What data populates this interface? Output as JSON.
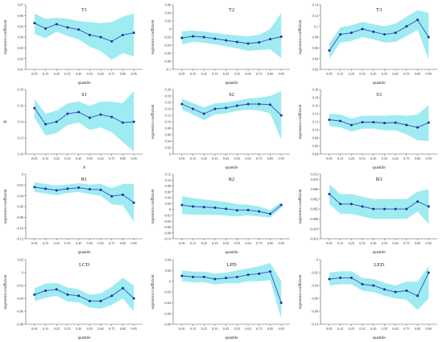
{
  "figure": {
    "x_label": "quantile",
    "band_color": "#8ee8f0",
    "line_color": "#3a4fc0",
    "marker_color": "#1e2fa0"
  },
  "chart_data": [
    {
      "type": "line",
      "title": "T1",
      "ylabel": "regression coefficient",
      "xlabel": "quantile",
      "x": [
        0.05,
        0.15,
        0.25,
        0.35,
        0.45,
        0.55,
        0.65,
        0.75,
        0.85,
        0.95
      ],
      "x_tick_labels": [
        "0.05",
        "0.15",
        "0.25",
        "0.35",
        "0.45",
        "0.55",
        "0.65",
        "0.75",
        "0.85",
        "0.95"
      ],
      "ylim": [
        0.01,
        0.07
      ],
      "y_ticks": [
        0.01,
        0.02,
        0.03,
        0.04,
        0.05,
        0.06,
        0.07
      ],
      "y_tick_labels": [
        "0.01",
        "0.02",
        "0.03",
        "0.04",
        "0.05",
        "0.06",
        "0.07"
      ],
      "series": [
        {
          "values": [
            0.053,
            0.048,
            0.052,
            0.049,
            0.047,
            0.042,
            0.04,
            0.036,
            0.042,
            0.044
          ]
        }
      ],
      "band": {
        "upper": [
          0.062,
          0.057,
          0.058,
          0.057,
          0.055,
          0.054,
          0.053,
          0.054,
          0.059,
          0.062
        ],
        "lower": [
          0.043,
          0.039,
          0.045,
          0.041,
          0.038,
          0.031,
          0.027,
          0.019,
          0.025,
          0.022
        ]
      }
    },
    {
      "type": "line",
      "title": "T2",
      "ylabel": "regression coefficient",
      "xlabel": "quantile",
      "x": [
        0.05,
        0.15,
        0.25,
        0.35,
        0.45,
        0.55,
        0.65,
        0.75,
        0.85,
        0.95
      ],
      "x_tick_labels": [
        "0.05",
        "0.15",
        "0.25",
        "0.35",
        "0.45",
        "0.55",
        "0.65",
        "0.75",
        "0.85",
        "0.95"
      ],
      "ylim": [
        -0.1,
        0.06
      ],
      "y_ticks": [
        -0.1,
        -0.08,
        -0.06,
        -0.04,
        -0.02,
        0,
        0.02,
        0.04,
        0.06
      ],
      "y_tick_labels": [
        "-0.1",
        "-0.08",
        "-0.06",
        "-0.04",
        "-0.02",
        "0",
        "0.02",
        "0.04",
        "0.06"
      ],
      "series": [
        {
          "values": [
            -0.022,
            -0.018,
            -0.02,
            -0.024,
            -0.028,
            -0.032,
            -0.036,
            -0.033,
            -0.025,
            -0.019
          ]
        }
      ],
      "band": {
        "upper": [
          -0.006,
          -0.004,
          -0.006,
          -0.01,
          -0.013,
          -0.016,
          -0.018,
          -0.014,
          0.0,
          0.04
        ],
        "lower": [
          -0.038,
          -0.032,
          -0.034,
          -0.038,
          -0.043,
          -0.048,
          -0.054,
          -0.052,
          -0.05,
          -0.072
        ]
      }
    },
    {
      "type": "line",
      "title": "T3",
      "ylabel": "regression coefficient",
      "xlabel": "quantile",
      "x": [
        0.05,
        0.15,
        0.25,
        0.35,
        0.45,
        0.55,
        0.65,
        0.75,
        0.85,
        0.95
      ],
      "x_tick_labels": [
        "0.05",
        "0.15",
        "0.25",
        "0.35",
        "0.45",
        "0.55",
        "0.65",
        "0.75",
        "0.85",
        "0.95"
      ],
      "ylim": [
        0.02,
        0.14
      ],
      "y_ticks": [
        0.02,
        0.04,
        0.06,
        0.08,
        0.1,
        0.12,
        0.14
      ],
      "y_tick_labels": [
        "0.02",
        "0.04",
        "0.06",
        "0.08",
        "0.1",
        "0.12",
        "0.14"
      ],
      "series": [
        {
          "values": [
            0.055,
            0.085,
            0.088,
            0.095,
            0.09,
            0.085,
            0.088,
            0.1,
            0.112,
            0.08
          ]
        }
      ],
      "band": {
        "upper": [
          0.068,
          0.098,
          0.102,
          0.108,
          0.104,
          0.1,
          0.105,
          0.118,
          0.13,
          0.125
        ],
        "lower": [
          0.04,
          0.07,
          0.073,
          0.08,
          0.076,
          0.07,
          0.071,
          0.082,
          0.094,
          0.038
        ]
      }
    },
    {
      "type": "line",
      "title": "S1",
      "ylabel": "B",
      "xlabel": "A",
      "x": [
        0.05,
        0.15,
        0.25,
        0.35,
        0.45,
        0.55,
        0.65,
        0.75,
        0.85,
        0.95
      ],
      "x_tick_labels": [
        "0.05",
        "0.15",
        "0.25",
        "0.35",
        "0.45",
        "0.55",
        "0.65",
        "0.75",
        "0.85",
        "0.95"
      ],
      "ylim": [
        0.1,
        0.18
      ],
      "y_ticks": [
        0.1,
        0.12,
        0.14,
        0.16,
        0.18
      ],
      "y_tick_labels": [
        "0.10",
        "0.12",
        "0.14",
        "0.16",
        "0.18"
      ],
      "series": [
        {
          "values": [
            0.157,
            0.137,
            0.14,
            0.15,
            0.152,
            0.145,
            0.149,
            0.146,
            0.139,
            0.14
          ]
        }
      ],
      "band": {
        "upper": [
          0.168,
          0.15,
          0.154,
          0.163,
          0.165,
          0.16,
          0.165,
          0.165,
          0.163,
          0.178
        ],
        "lower": [
          0.145,
          0.123,
          0.126,
          0.136,
          0.139,
          0.13,
          0.133,
          0.127,
          0.115,
          0.103
        ]
      }
    },
    {
      "type": "line",
      "title": "S2",
      "ylabel": "regression coefficient",
      "xlabel": "quantile",
      "x": [
        0.05,
        0.15,
        0.25,
        0.35,
        0.45,
        0.55,
        0.65,
        0.75,
        0.85,
        0.95
      ],
      "x_tick_labels": [
        "0.05",
        "0.15",
        "0.25",
        "0.35",
        "0.45",
        "0.55",
        "0.65",
        "0.75",
        "0.85",
        "0.95"
      ],
      "ylim": [
        0,
        0.2
      ],
      "y_ticks": [
        0,
        0.02,
        0.04,
        0.06,
        0.08,
        0.1,
        0.12,
        0.14,
        0.16,
        0.18,
        0.2
      ],
      "y_tick_labels": [
        "0",
        "0.02",
        "0.04",
        "0.06",
        "0.08",
        "0.10",
        "0.12",
        "0.14",
        "0.16",
        "0.18",
        "0.20"
      ],
      "series": [
        {
          "values": [
            0.155,
            0.14,
            0.125,
            0.14,
            0.143,
            0.15,
            0.155,
            0.155,
            0.153,
            0.12
          ]
        }
      ],
      "band": {
        "upper": [
          0.172,
          0.158,
          0.145,
          0.157,
          0.16,
          0.166,
          0.172,
          0.175,
          0.18,
          0.195
        ],
        "lower": [
          0.138,
          0.122,
          0.105,
          0.123,
          0.126,
          0.134,
          0.138,
          0.135,
          0.126,
          0.045
        ]
      }
    },
    {
      "type": "line",
      "title": "S3",
      "ylabel": "regression coefficient",
      "xlabel": "quantile",
      "x": [
        0.05,
        0.15,
        0.25,
        0.35,
        0.45,
        0.55,
        0.65,
        0.75,
        0.85,
        0.95
      ],
      "x_tick_labels": [
        "0.05",
        "0.15",
        "0.25",
        "0.35",
        "0.45",
        "0.55",
        "0.65",
        "0.75",
        "0.85",
        "0.95"
      ],
      "ylim": [
        0.04,
        0.2
      ],
      "y_ticks": [
        0.04,
        0.06,
        0.08,
        0.1,
        0.12,
        0.14,
        0.16,
        0.18,
        0.2
      ],
      "y_tick_labels": [
        "0.04",
        "0.06",
        "0.08",
        "0.10",
        "0.12",
        "0.14",
        "0.16",
        "0.18",
        "0.20"
      ],
      "series": [
        {
          "values": [
            0.125,
            0.122,
            0.112,
            0.119,
            0.119,
            0.117,
            0.118,
            0.112,
            0.106,
            0.118
          ]
        }
      ],
      "band": {
        "upper": [
          0.14,
          0.138,
          0.128,
          0.135,
          0.135,
          0.135,
          0.137,
          0.135,
          0.138,
          0.162
        ],
        "lower": [
          0.11,
          0.106,
          0.096,
          0.103,
          0.103,
          0.099,
          0.099,
          0.089,
          0.074,
          0.072
        ]
      }
    },
    {
      "type": "line",
      "title": "R1",
      "ylabel": "regression coefficient",
      "xlabel": "quantile",
      "x": [
        0.05,
        0.15,
        0.25,
        0.35,
        0.45,
        0.55,
        0.65,
        0.75,
        0.85,
        0.95
      ],
      "x_tick_labels": [
        "0.05",
        "0.15",
        "0.25",
        "0.35",
        "0.45",
        "0.55",
        "0.65",
        "0.75",
        "0.85",
        "0.95"
      ],
      "ylim": [
        -0.12,
        0
      ],
      "y_ticks": [
        -0.12,
        -0.1,
        -0.08,
        -0.06,
        -0.04,
        -0.02,
        0
      ],
      "y_tick_labels": [
        "-0.12",
        "-0.10",
        "-0.08",
        "-0.06",
        "-0.04",
        "-0.02",
        "0"
      ],
      "series": [
        {
          "values": [
            -0.024,
            -0.027,
            -0.03,
            -0.027,
            -0.025,
            -0.028,
            -0.029,
            -0.041,
            -0.038,
            -0.053
          ]
        }
      ],
      "band": {
        "upper": [
          -0.015,
          -0.018,
          -0.021,
          -0.019,
          -0.017,
          -0.019,
          -0.018,
          -0.026,
          -0.018,
          -0.018
        ],
        "lower": [
          -0.033,
          -0.036,
          -0.039,
          -0.035,
          -0.033,
          -0.037,
          -0.04,
          -0.056,
          -0.058,
          -0.088
        ]
      }
    },
    {
      "type": "line",
      "title": "R2",
      "ylabel": "regression coefficient",
      "xlabel": "quantile",
      "x": [
        0.05,
        0.15,
        0.25,
        0.35,
        0.45,
        0.55,
        0.65,
        0.75,
        0.85,
        0.95
      ],
      "x_tick_labels": [
        "0.05",
        "0.15",
        "0.25",
        "0.35",
        "0.45",
        "0.55",
        "0.65",
        "0.75",
        "0.85",
        "0.95"
      ],
      "ylim": [
        -0.1,
        0.12
      ],
      "y_ticks": [
        -0.1,
        -0.08,
        -0.06,
        -0.04,
        -0.02,
        0,
        0.02,
        0.04,
        0.06,
        0.08,
        0.1,
        0.12
      ],
      "y_tick_labels": [
        "-0.10",
        "-0.08",
        "-0.06",
        "-0.04",
        "-0.02",
        "0",
        "0.02",
        "0.04",
        "0.06",
        "0.08",
        "0.10",
        "0.12"
      ],
      "series": [
        {
          "values": [
            0.015,
            0.01,
            0.008,
            0.006,
            0.002,
            -0.003,
            -0.002,
            -0.007,
            -0.015,
            0.015
          ]
        }
      ],
      "band": {
        "upper": [
          0.045,
          0.038,
          0.034,
          0.03,
          0.025,
          0.018,
          0.016,
          0.01,
          -0.002,
          0.025
        ],
        "lower": [
          -0.015,
          -0.018,
          -0.018,
          -0.018,
          -0.021,
          -0.024,
          -0.02,
          -0.024,
          -0.028,
          0.005
        ]
      }
    },
    {
      "type": "line",
      "title": "R3",
      "ylabel": "regression coefficient",
      "xlabel": "quantile",
      "x": [
        0.05,
        0.15,
        0.25,
        0.35,
        0.45,
        0.55,
        0.65,
        0.75,
        0.85,
        0.95
      ],
      "x_tick_labels": [
        "0.05",
        "0.15",
        "0.25",
        "0.35",
        "0.45",
        "0.55",
        "0.65",
        "0.75",
        "0.85",
        "0.95"
      ],
      "ylim": [
        -0.014,
        0.012
      ],
      "y_ticks": [
        -0.014,
        -0.01,
        -0.006,
        -0.002,
        0.002,
        0.006,
        0.01,
        0.012
      ],
      "y_tick_labels": [
        "-0.014",
        "-0.010",
        "-0.006",
        "-0.002",
        "0.002",
        "0.006",
        "0.010",
        "0.012"
      ],
      "series": [
        {
          "values": [
            0.004,
            0.0,
            0.0,
            -0.001,
            -0.002,
            -0.002,
            -0.002,
            -0.002,
            0.001,
            -0.001
          ]
        }
      ],
      "band": {
        "upper": [
          0.008,
          0.004,
          0.004,
          0.003,
          0.002,
          0.002,
          0.002,
          0.002,
          0.005,
          0.006
        ],
        "lower": [
          0.0,
          -0.004,
          -0.004,
          -0.005,
          -0.006,
          -0.006,
          -0.006,
          -0.006,
          -0.003,
          -0.008
        ]
      }
    },
    {
      "type": "line",
      "title": "LCD",
      "ylabel": "regression coefficient",
      "xlabel": "quantile",
      "x": [
        0.05,
        0.15,
        0.25,
        0.35,
        0.45,
        0.55,
        0.65,
        0.75,
        0.85,
        0.95
      ],
      "x_tick_labels": [
        "0.05",
        "0.15",
        "0.25",
        "0.35",
        "0.45",
        "0.55",
        "0.65",
        "0.75",
        "0.85",
        "0.95"
      ],
      "ylim": [
        -0.08,
        0.02
      ],
      "y_ticks": [
        -0.08,
        -0.06,
        -0.04,
        -0.02,
        0,
        0.02
      ],
      "y_tick_labels": [
        "-0.08",
        "-0.06",
        "-0.04",
        "-0.02",
        "0",
        "0.02"
      ],
      "series": [
        {
          "values": [
            -0.034,
            -0.028,
            -0.026,
            -0.034,
            -0.036,
            -0.044,
            -0.044,
            -0.036,
            -0.024,
            -0.04
          ]
        }
      ],
      "band": {
        "upper": [
          -0.024,
          -0.017,
          -0.016,
          -0.023,
          -0.026,
          -0.034,
          -0.032,
          -0.022,
          -0.008,
          -0.02
        ],
        "lower": [
          -0.044,
          -0.039,
          -0.036,
          -0.045,
          -0.046,
          -0.054,
          -0.056,
          -0.05,
          -0.04,
          -0.06
        ]
      }
    },
    {
      "type": "line",
      "title": "LPD",
      "ylabel": "regression coefficient",
      "xlabel": "quantile",
      "x": [
        0.05,
        0.15,
        0.25,
        0.35,
        0.45,
        0.55,
        0.65,
        0.75,
        0.85,
        0.95
      ],
      "x_tick_labels": [
        "0.05",
        "0.15",
        "0.25",
        "0.35",
        "0.45",
        "0.55",
        "0.65",
        "0.75",
        "0.85",
        "0.95"
      ],
      "ylim": [
        -0.08,
        0.04
      ],
      "y_ticks": [
        -0.08,
        -0.06,
        -0.04,
        -0.02,
        0,
        0.02,
        0.04
      ],
      "y_tick_labels": [
        "-0.08",
        "-0.06",
        "-0.04",
        "-0.02",
        "0",
        "0.02",
        "0.04"
      ],
      "series": [
        {
          "values": [
            0.01,
            0.008,
            0.008,
            0.004,
            0.006,
            0.008,
            0.012,
            0.014,
            0.018,
            -0.04
          ]
        }
      ],
      "band": {
        "upper": [
          0.02,
          0.018,
          0.018,
          0.014,
          0.016,
          0.02,
          0.024,
          0.028,
          0.034,
          0.0
        ],
        "lower": [
          0.0,
          -0.002,
          -0.002,
          -0.006,
          -0.004,
          -0.004,
          0.0,
          0.0,
          0.002,
          -0.07
        ]
      }
    },
    {
      "type": "line",
      "title": "LED",
      "ylabel": "regression coefficient",
      "xlabel": "quantile",
      "x": [
        0.05,
        0.15,
        0.25,
        0.35,
        0.45,
        0.55,
        0.65,
        0.75,
        0.85,
        0.95
      ],
      "x_tick_labels": [
        "0.05",
        "0.15",
        "0.25",
        "0.35",
        "0.45",
        "0.55",
        "0.65",
        "0.75",
        "0.85",
        "0.95"
      ],
      "ylim": [
        -0.1,
        0
      ],
      "y_ticks": [
        -0.1,
        -0.08,
        -0.06,
        -0.04,
        -0.02,
        0
      ],
      "y_tick_labels": [
        "-0.10",
        "-0.08",
        "-0.06",
        "-0.04",
        "-0.02",
        "0"
      ],
      "series": [
        {
          "values": [
            -0.03,
            -0.028,
            -0.028,
            -0.038,
            -0.04,
            -0.046,
            -0.05,
            -0.048,
            -0.056,
            -0.02
          ]
        }
      ],
      "band": {
        "upper": [
          -0.02,
          -0.018,
          -0.018,
          -0.028,
          -0.03,
          -0.036,
          -0.04,
          -0.034,
          -0.034,
          -0.01
        ],
        "lower": [
          -0.04,
          -0.038,
          -0.038,
          -0.048,
          -0.05,
          -0.056,
          -0.06,
          -0.062,
          -0.078,
          -0.06
        ]
      }
    }
  ]
}
